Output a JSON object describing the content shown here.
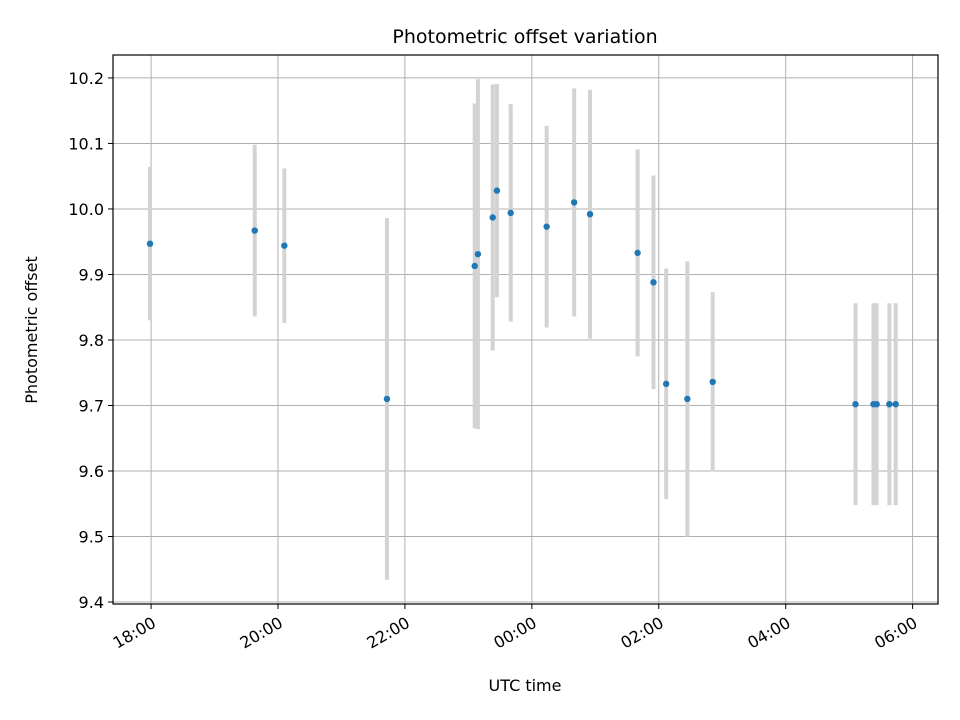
{
  "chart_data": {
    "type": "scatter",
    "title": "Photometric offset variation",
    "xlabel": "UTC time",
    "ylabel": "Photometric offset",
    "x_axis_kind": "time",
    "x_start_date": "",
    "xlim_hours": [
      17.4,
      30.4
    ],
    "ylim": [
      9.397,
      10.235
    ],
    "grid": true,
    "x_ticks": [
      {
        "label": "18:00",
        "hour": 18
      },
      {
        "label": "20:00",
        "hour": 20
      },
      {
        "label": "22:00",
        "hour": 22
      },
      {
        "label": "00:00",
        "hour": 24
      },
      {
        "label": "02:00",
        "hour": 26
      },
      {
        "label": "04:00",
        "hour": 28
      },
      {
        "label": "06:00",
        "hour": 30
      }
    ],
    "y_ticks": [
      9.4,
      9.5,
      9.6,
      9.7,
      9.8,
      9.9,
      10.0,
      10.1,
      10.2
    ],
    "y_tick_labels": [
      "9.4",
      "9.5",
      "9.6",
      "9.7",
      "9.8",
      "9.9",
      "10.0",
      "10.1",
      "10.2"
    ],
    "marker_color": "#1f77b4",
    "errorbar_color": "#d3d3d3",
    "points": [
      {
        "time": "17:59",
        "y": 9.947,
        "err": 0.117
      },
      {
        "time": "19:38",
        "y": 9.967,
        "err": 0.131
      },
      {
        "time": "20:06",
        "y": 9.944,
        "err": 0.118
      },
      {
        "time": "21:43",
        "y": 9.71,
        "err": 0.276
      },
      {
        "time": "23:06",
        "y": 9.913,
        "err": 0.248
      },
      {
        "time": "23:09",
        "y": 9.931,
        "err": 0.267
      },
      {
        "time": "23:23",
        "y": 9.987,
        "err": 0.203
      },
      {
        "time": "23:27",
        "y": 10.028,
        "err": 0.163
      },
      {
        "time": "23:40",
        "y": 9.994,
        "err": 0.166
      },
      {
        "time": "00:14",
        "y": 9.973,
        "err": 0.154
      },
      {
        "time": "00:40",
        "y": 10.01,
        "err": 0.174
      },
      {
        "time": "00:55",
        "y": 9.992,
        "err": 0.19
      },
      {
        "time": "01:40",
        "y": 9.933,
        "err": 0.158
      },
      {
        "time": "01:55",
        "y": 9.888,
        "err": 0.163
      },
      {
        "time": "02:07",
        "y": 9.733,
        "err": 0.176
      },
      {
        "time": "02:27",
        "y": 9.71,
        "err": 0.21
      },
      {
        "time": "02:51",
        "y": 9.736,
        "err": 0.137
      },
      {
        "time": "05:06",
        "y": 9.702,
        "err": 0.154
      },
      {
        "time": "05:23",
        "y": 9.702,
        "err": 0.154
      },
      {
        "time": "05:26",
        "y": 9.702,
        "err": 0.154
      },
      {
        "time": "05:38",
        "y": 9.702,
        "err": 0.154
      },
      {
        "time": "05:44",
        "y": 9.702,
        "err": 0.154
      }
    ]
  }
}
